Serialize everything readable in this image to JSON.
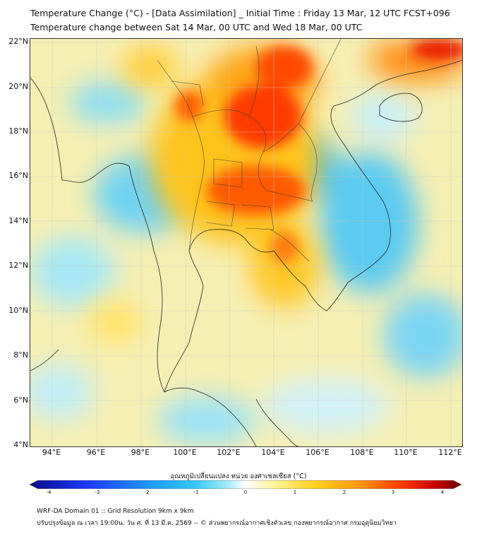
{
  "header": {
    "title_line1": "Temperature Change (°C) - [Data Assimilation] _ Initial Time : Friday 13 Mar, 12 UTC FCST+096",
    "title_line2": "Temperature change between Sat 14 Mar, 00 UTC and Wed 18 Mar, 00 UTC"
  },
  "map": {
    "lat_labels": [
      "22°N",
      "20°N",
      "18°N",
      "16°N",
      "14°N",
      "12°N",
      "10°N",
      "8°N",
      "6°N",
      "4°N"
    ],
    "lon_labels": [
      "94°E",
      "96°E",
      "98°E",
      "100°E",
      "102°E",
      "104°E",
      "106°E",
      "108°E",
      "110°E",
      "112°E"
    ],
    "lat_range": [
      4,
      22.3
    ],
    "lon_range": [
      93,
      112.5
    ]
  },
  "colorbar": {
    "title": "อุณหภูมิเปลี่ยนแปลง หน่วย องศาเซลเซียส (°C)",
    "tick_labels": [
      "-4",
      "-3",
      "-2",
      "-1",
      "0",
      "1",
      "2",
      "3",
      "4"
    ],
    "range": [
      -4,
      4
    ],
    "colors": [
      "#0a0a8a",
      "#1e3cff",
      "#1e9bff",
      "#33c8f5",
      "#8fe6f7",
      "#ffffff",
      "#fff6a0",
      "#ffd21e",
      "#ff9a0a",
      "#ff3c00",
      "#c80000",
      "#6e0000"
    ]
  },
  "footer": {
    "line1": "WRF-DA Domain 01 :: Grid Resolution 9km x 9km",
    "line2": "ปรับปรุงข้อมูล ณ เวลา 19:00น. วัน ศ. ที่ 13 มี.ค. 2569 -- © ส่วนพยากรณ์อากาศเชิงตัวเลข กองพยากรณ์อากาศ กรมอุตุนิยมวิทยา"
  }
}
